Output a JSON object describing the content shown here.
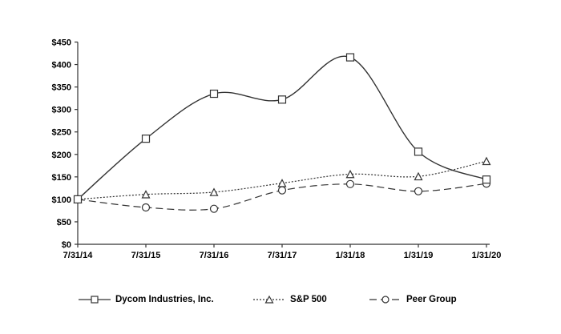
{
  "figure": {
    "background_color": "#ffffff",
    "line_color": "#333333",
    "text_color": "#000000",
    "marker_fill": "#ffffff"
  },
  "chart_data": {
    "type": "line",
    "title": "",
    "xlabel": "",
    "ylabel": "",
    "categories": [
      "7/31/14",
      "7/31/15",
      "7/31/16",
      "7/31/17",
      "1/31/18",
      "1/31/19",
      "1/31/20"
    ],
    "y_ticks": [
      "$0",
      "$50",
      "$100",
      "$150",
      "$200",
      "$250",
      "$300",
      "$350",
      "$400",
      "$450"
    ],
    "ylim": [
      0,
      450
    ],
    "grid": false,
    "legend_position": "bottom",
    "series": [
      {
        "name": "Dycom Industries, Inc.",
        "values": [
          100,
          235,
          335,
          322,
          416,
          206,
          144
        ],
        "line_style": "solid",
        "marker": "square"
      },
      {
        "name": "S&P 500",
        "values": [
          100,
          111,
          116,
          136,
          156,
          151,
          185
        ],
        "line_style": "dotted",
        "marker": "triangle"
      },
      {
        "name": "Peer Group",
        "values": [
          100,
          82,
          79,
          120,
          134,
          118,
          135
        ],
        "line_style": "dashed",
        "marker": "circle"
      }
    ]
  }
}
